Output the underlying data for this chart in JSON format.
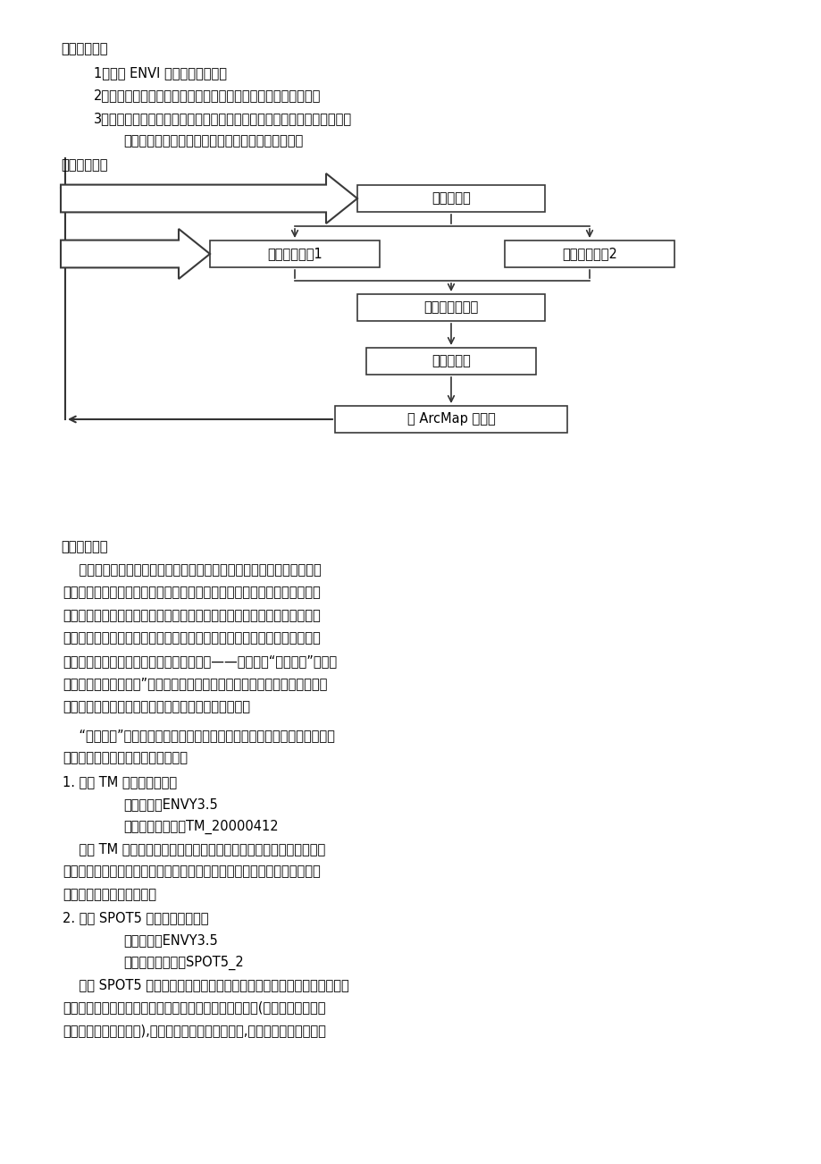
{
  "bg_color": "#ffffff",
  "text_color": "#000000",
  "page_width": 9.2,
  "page_height": 13.02,
  "heading1": "一．实验目的",
  "heading2": "二．实验流程",
  "heading3": "三．实验内容",
  "line1": "1、熏悉 ENVI 软件的具体操作；",
  "line2": "2、理解并能掌握水体信息的提取方法、步骤及其结果评价方法；",
  "line3": "3、通过实习，加深对所学遥感专业知识的理解与掌握，使理论知识融会贯",
  "line4": "通，提高实践动手能力和综合解决实际问题的能力。",
  "box1_label": "图像预处理",
  "box2_label": "植被提取模型1",
  "box3_label": "植被提取模型2",
  "box4_label": "数字形态学滤波",
  "box5_label": "栅格转矢量",
  "box6_label": "在 ArcMap 中打开",
  "para1_lines": [
    "    遥感图像上的植被信息，主要通过绿色植物叶子和植被冠层的光谱特性",
    "及其差异、变化而反映的，不同光谱通道所获得的植被信息可与植被的不同",
    "要素或某种特征状态有各种不同的相关性，因此，我们往往选用多光谱遥感",
    "数据经分析运算（加、减、乘、除等线性或非线性组合方式），产生某些对",
    "植被长势、生物量等有一定指示意义的数値——即所谓的“植被指数”。我们",
    "可以通过提取植被指数”这种简单有效的形式来实现对植物状态信息的表达，",
    "以定性和定量地评价植被覆盖、生长活力及生物量等。"
  ],
  "para2_lines": [
    "    “植被指数”的提取方法有很多种，包括比値植被指数，归一化植被指数，",
    "差値植被指数，绿度植被指数等等。"
  ],
  "sec1_label": "1. 基于 TM 影像植被的提取",
  "sec1_sw": "采用软件：ENVY3.5",
  "sec1_data": "采用的遥感数据：TM_20000412",
  "para3_lines": [
    "    对于 TM 影像植被的提取我使用的方法是分别对影像进行比値植被指",
    "数，归一化植被指数，绿度植被指数提取，然后将获得的影像进行主成分分",
    "析，最后得到所需的图像。"
  ],
  "sec2_label": "2. 基于 SPOT5 影像的植被的提取",
  "sec2_sw": "采用软件：ENVY3.5",
  "sec2_data": "采用的遥感数据：SPOT5_2",
  "para4_lines": [
    "    对于 SPOT5 影像选用对绿色植物（叶绻素引起的）强吸收的可见光红波",
    "段和对绿色植物（叶内组织引起的）高反射的近红外波段(这两个波段是植物",
    "光谱中的最典型的波段),然后建立植被指数提取模型,最后得到所需的图像。"
  ]
}
